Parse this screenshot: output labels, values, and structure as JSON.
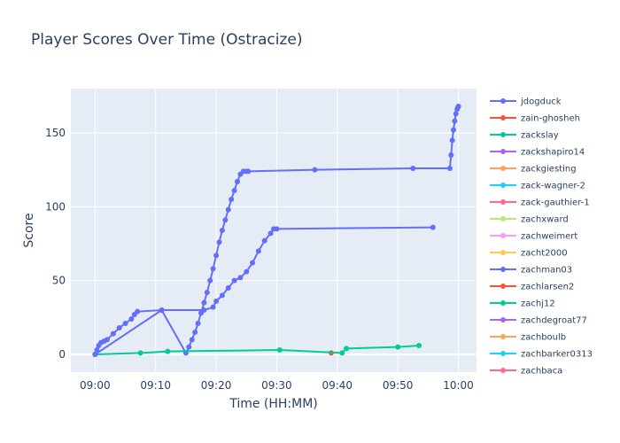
{
  "chart_data": {
    "type": "line",
    "title": "Player Scores Over Time (Ostracize)",
    "xlabel": "Time (HH:MM)",
    "ylabel": "Score",
    "x_ticks": [
      "09:00",
      "09:10",
      "09:20",
      "09:30",
      "09:40",
      "09:50",
      "10:00"
    ],
    "y_ticks": [
      0,
      50,
      100,
      150
    ],
    "xlim_minutes": [
      -4,
      63
    ],
    "ylim": [
      -12,
      180
    ],
    "grid": true,
    "legend_placement": "right",
    "series": [
      {
        "name": "jdogduck",
        "color": "#636efa",
        "x": [
          0.0,
          0.3,
          0.6,
          1.0,
          1.5,
          2.0,
          3.0,
          4.0,
          5.0,
          6.0,
          6.5,
          7.0,
          11.0,
          15.0,
          15.5,
          16.0,
          16.5,
          17.0,
          17.5,
          18.0,
          18.5,
          19.0,
          19.5,
          20.0,
          20.5,
          21.0,
          21.5,
          22.0,
          22.5,
          23.0,
          23.5,
          24.0,
          24.5,
          25.0,
          25.3,
          36.3,
          52.5,
          58.6,
          58.8,
          59.0,
          59.2,
          59.4,
          59.6,
          59.8,
          59.9,
          60.0
        ],
        "y": [
          0,
          3,
          6,
          8,
          9,
          10,
          14,
          18,
          21,
          24,
          27,
          29,
          30,
          1,
          5,
          10,
          15,
          21,
          28,
          35,
          42,
          50,
          58,
          67,
          76,
          84,
          91,
          98,
          105,
          111,
          117,
          122,
          124,
          124,
          124,
          125,
          126,
          126,
          135,
          145,
          152,
          158,
          163,
          166,
          167,
          168
        ]
      },
      {
        "name": "zain-ghosheh",
        "color": "#ef553b",
        "x": [
          39.0
        ],
        "y": [
          1
        ]
      },
      {
        "name": "zackslay",
        "color": "#00cc96",
        "x": [
          0.0,
          7.5,
          12.0,
          30.5,
          40.8,
          41.5,
          50.0,
          53.5
        ],
        "y": [
          0,
          1,
          2,
          3,
          1,
          4,
          5,
          6
        ]
      },
      {
        "name": "zackshapiro14",
        "color": "#ab63fa",
        "x": [],
        "y": []
      },
      {
        "name": "zackgiesting",
        "color": "#ffa15a",
        "x": [
          0.0
        ],
        "y": [
          0
        ]
      },
      {
        "name": "zack-wagner-2",
        "color": "#19d3f3",
        "x": [],
        "y": []
      },
      {
        "name": "zack-gauthier-1",
        "color": "#ff6692",
        "x": [],
        "y": []
      },
      {
        "name": "zachxward",
        "color": "#b6e880",
        "x": [],
        "y": []
      },
      {
        "name": "zachweimert",
        "color": "#ff97ff",
        "x": [],
        "y": []
      },
      {
        "name": "zacht2000",
        "color": "#fecb52",
        "x": [],
        "y": []
      },
      {
        "name": "zachman03",
        "color": "#636efa",
        "x": [
          0.0,
          11.0,
          18.0,
          19.5,
          20.0,
          21.0,
          22.0,
          23.0,
          24.0,
          25.0,
          26.0,
          27.0,
          28.0,
          29.0,
          29.5,
          30.0,
          55.8
        ],
        "y": [
          0,
          30,
          30,
          32,
          36,
          40,
          45,
          50,
          52,
          56,
          62,
          70,
          77,
          82,
          85,
          85,
          86
        ]
      },
      {
        "name": "zachlarsen2",
        "color": "#ef553b",
        "x": [],
        "y": []
      },
      {
        "name": "zachj12",
        "color": "#00cc96",
        "x": [],
        "y": []
      },
      {
        "name": "zachdegroat77",
        "color": "#ab63fa",
        "x": [],
        "y": []
      },
      {
        "name": "zachboulb",
        "color": "#ffa15a",
        "x": [],
        "y": []
      },
      {
        "name": "zachbarker0313",
        "color": "#19d3f3",
        "x": [],
        "y": []
      },
      {
        "name": "zachbaca",
        "color": "#ff6692",
        "x": [],
        "y": []
      }
    ]
  }
}
